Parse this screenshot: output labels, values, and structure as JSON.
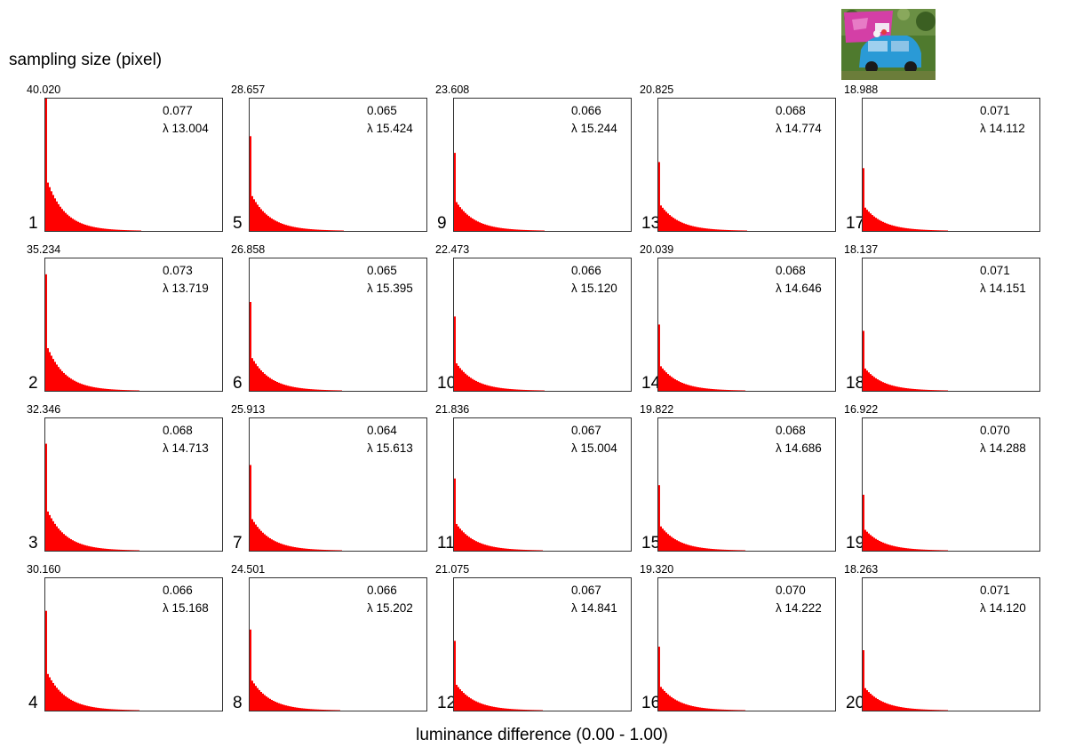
{
  "figure": {
    "title": "sampling size (pixel)",
    "xlabel": "luminance difference (0.00 - 1.00)",
    "bar_color": "#ff0000",
    "thumbnail": "car-photo-thumbnail"
  },
  "chart_data": {
    "type": "bar",
    "layout": "grid of 20 histograms, 4 rows x 5 columns",
    "xlim": [
      0.0,
      1.0
    ],
    "panels": [
      {
        "index": "1",
        "peak": "40.020",
        "mean": "0.077",
        "lambda": "λ 13.004"
      },
      {
        "index": "2",
        "peak": "35.234",
        "mean": "0.073",
        "lambda": "λ 13.719"
      },
      {
        "index": "3",
        "peak": "32.346",
        "mean": "0.068",
        "lambda": "λ 14.713"
      },
      {
        "index": "4",
        "peak": "30.160",
        "mean": "0.066",
        "lambda": "λ 15.168"
      },
      {
        "index": "5",
        "peak": "28.657",
        "mean": "0.065",
        "lambda": "λ 15.424"
      },
      {
        "index": "6",
        "peak": "26.858",
        "mean": "0.065",
        "lambda": "λ 15.395"
      },
      {
        "index": "7",
        "peak": "25.913",
        "mean": "0.064",
        "lambda": "λ 15.613"
      },
      {
        "index": "8",
        "peak": "24.501",
        "mean": "0.066",
        "lambda": "λ 15.202"
      },
      {
        "index": "9",
        "peak": "23.608",
        "mean": "0.066",
        "lambda": "λ 15.244"
      },
      {
        "index": "10",
        "peak": "22.473",
        "mean": "0.066",
        "lambda": "λ 15.120"
      },
      {
        "index": "11",
        "peak": "21.836",
        "mean": "0.067",
        "lambda": "λ 15.004"
      },
      {
        "index": "12",
        "peak": "21.075",
        "mean": "0.067",
        "lambda": "λ 14.841"
      },
      {
        "index": "13",
        "peak": "20.825",
        "mean": "0.068",
        "lambda": "λ 14.774"
      },
      {
        "index": "14",
        "peak": "20.039",
        "mean": "0.068",
        "lambda": "λ 14.646"
      },
      {
        "index": "15",
        "peak": "19.822",
        "mean": "0.068",
        "lambda": "λ 14.686"
      },
      {
        "index": "16",
        "peak": "19.320",
        "mean": "0.070",
        "lambda": "λ 14.222"
      },
      {
        "index": "17",
        "peak": "18.988",
        "mean": "0.071",
        "lambda": "λ 14.112"
      },
      {
        "index": "18",
        "peak": "18.137",
        "mean": "0.071",
        "lambda": "λ 14.151"
      },
      {
        "index": "19",
        "peak": "16.922",
        "mean": "0.070",
        "lambda": "λ 14.288"
      },
      {
        "index": "20",
        "peak": "18.263",
        "mean": "0.071",
        "lambda": "λ 14.120"
      }
    ]
  }
}
